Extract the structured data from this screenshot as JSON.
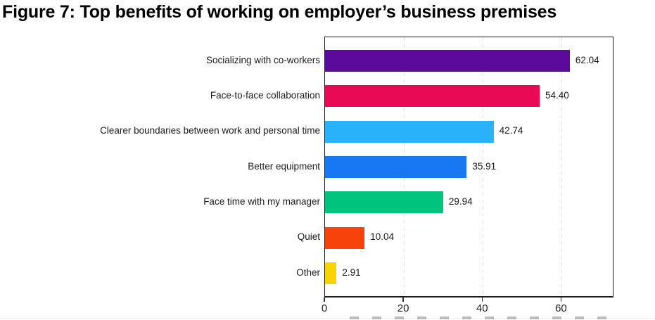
{
  "title": "Figure 7: Top benefits of working on employer’s business premises",
  "chart_data": {
    "type": "bar",
    "orientation": "horizontal",
    "title": "Figure 7: Top benefits of working on employer’s business premises",
    "categories": [
      "Socializing with co-workers",
      "Face-to-face collaboration",
      "Clearer boundaries between work and personal time",
      "Better equipment",
      "Face time with my manager",
      "Quiet",
      "Other"
    ],
    "values": [
      62.04,
      54.4,
      42.74,
      35.91,
      29.94,
      10.04,
      2.91
    ],
    "value_labels": [
      "62.04",
      "54.40",
      "42.74",
      "35.91",
      "29.94",
      "10.04",
      "2.91"
    ],
    "bar_colors": [
      "#5b0a9b",
      "#e90a56",
      "#29b2f7",
      "#1877f2",
      "#00c47e",
      "#f5430b",
      "#f8d306"
    ],
    "xlabel": "",
    "ylabel": "",
    "xlim": [
      0,
      73.3
    ],
    "xticks": [
      0,
      20,
      40,
      60
    ],
    "grid": "vertical-dashed",
    "legend": "none",
    "frame": true
  },
  "colors": {
    "grid": "#e2e2e2",
    "frame": "#1a1a1a",
    "text": "#1a1a1a",
    "background": "#ffffff"
  }
}
